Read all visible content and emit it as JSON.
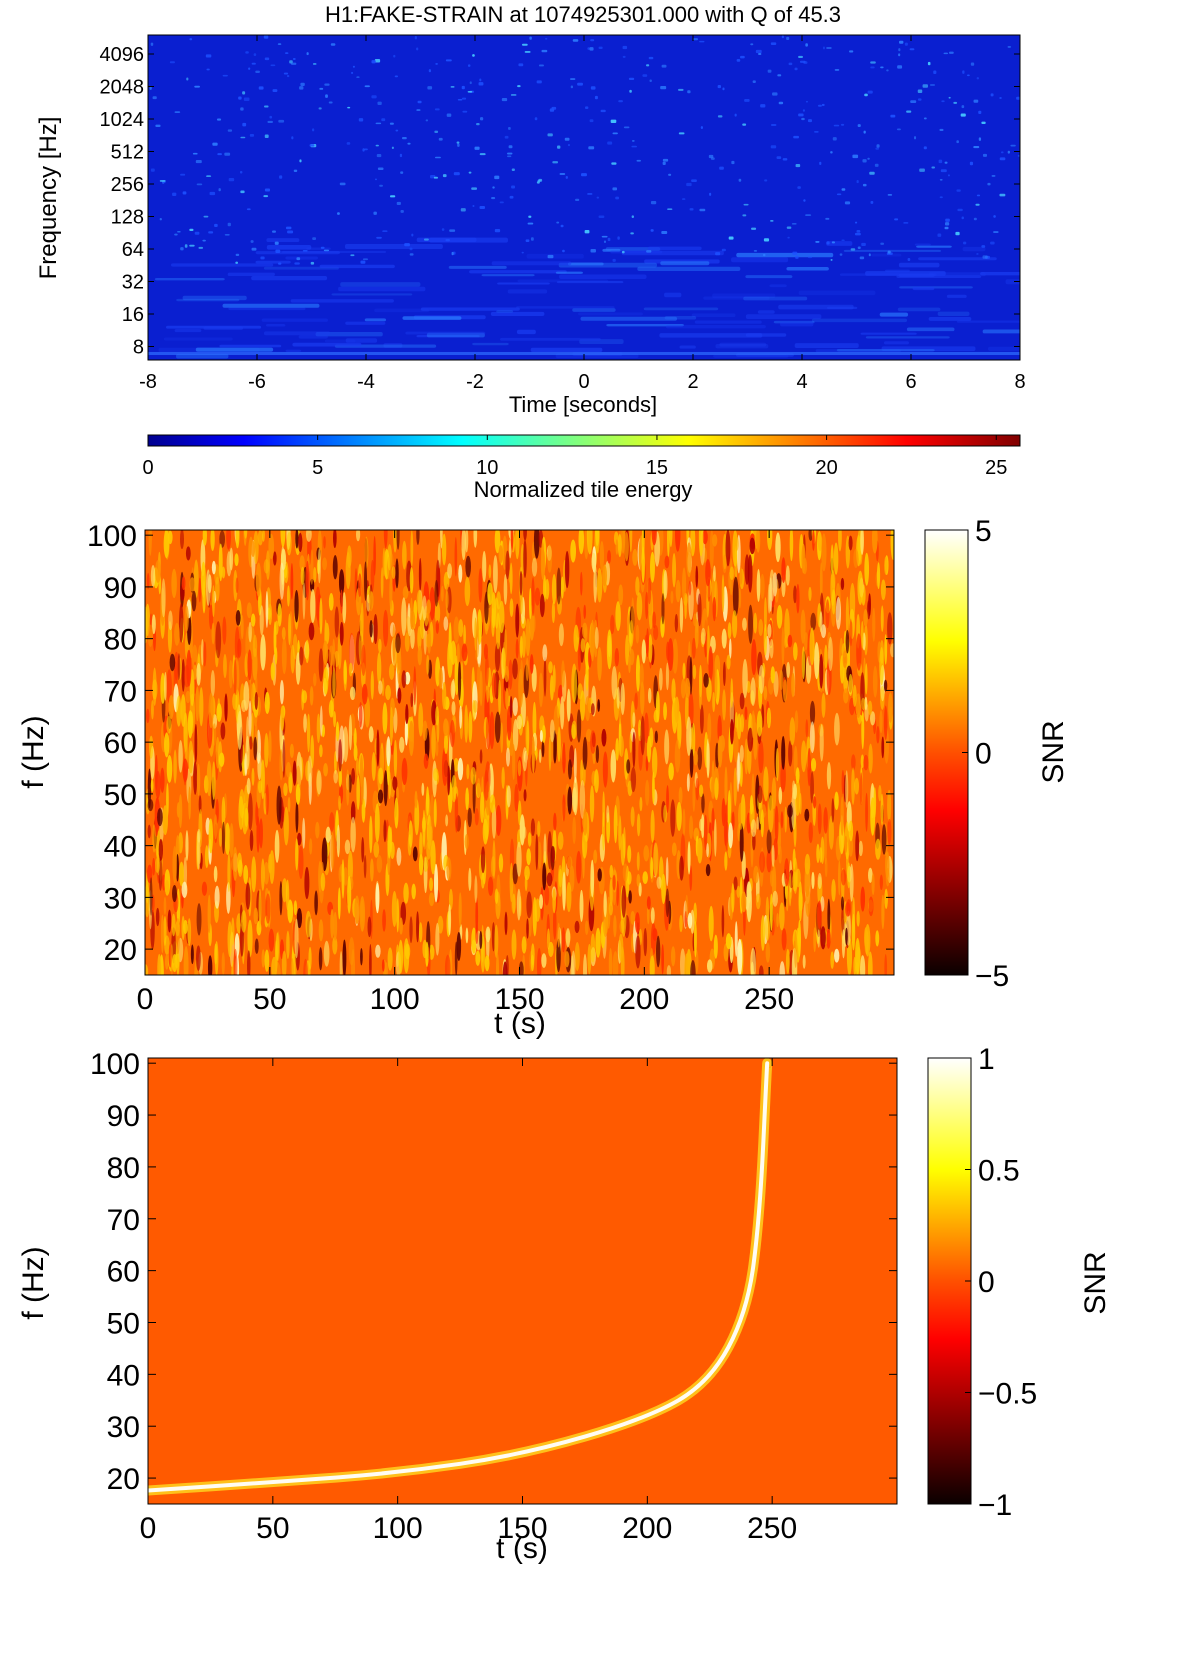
{
  "chart_data": [
    {
      "type": "heatmap",
      "title": "H1:FAKE-STRAIN at 1074925301.000 with Q of 45.3",
      "xlabel": "Time [seconds]",
      "ylabel": "Frequency [Hz]",
      "x_ticks": [
        -8,
        -6,
        -4,
        -2,
        0,
        2,
        4,
        6,
        8
      ],
      "y_ticks": [
        8,
        16,
        32,
        64,
        128,
        256,
        512,
        1024,
        2048,
        4096
      ],
      "xlim": [
        -8,
        8
      ],
      "ylim": [
        6,
        6144
      ],
      "y_scale": "log2",
      "colormap": "jet",
      "colorbar": {
        "label": "Normalized tile energy",
        "orientation": "horizontal",
        "placement": "below",
        "range": [
          0,
          25.7
        ],
        "ticks": [
          0,
          5,
          10,
          15,
          20,
          25
        ]
      },
      "background_color": "#0a1fd0"
    },
    {
      "type": "heatmap",
      "xlabel": "t (s)",
      "ylabel": "f (Hz)",
      "x_ticks": [
        0,
        50,
        100,
        150,
        200,
        250
      ],
      "y_ticks": [
        20,
        30,
        40,
        50,
        60,
        70,
        80,
        90,
        100
      ],
      "xlim": [
        0,
        300
      ],
      "ylim": [
        15,
        101
      ],
      "colormap": "hot",
      "colorbar": {
        "label": "SNR",
        "orientation": "vertical",
        "placement": "right",
        "range": [
          -5,
          5
        ],
        "ticks": [
          5,
          0,
          -5
        ],
        "tick_labels": [
          "5",
          "0",
          "−5"
        ]
      },
      "content": "noise"
    },
    {
      "type": "heatmap",
      "xlabel": "t (s)",
      "ylabel": "f (Hz)",
      "x_ticks": [
        0,
        50,
        100,
        150,
        200,
        250
      ],
      "y_ticks": [
        20,
        30,
        40,
        50,
        60,
        70,
        80,
        90,
        100
      ],
      "xlim": [
        0,
        300
      ],
      "ylim": [
        15,
        101
      ],
      "colormap": "hot",
      "colorbar": {
        "label": "SNR",
        "orientation": "vertical",
        "placement": "right",
        "range": [
          -1,
          1
        ],
        "ticks": [
          1,
          0.5,
          0,
          -0.5,
          -1
        ],
        "tick_labels": [
          "1",
          "0.5",
          "0",
          "−0.5",
          "−1"
        ]
      },
      "content": "chirp",
      "chirp": {
        "t_start": 0,
        "t_coalescence": 250,
        "f_start": 17.6,
        "points": [
          [
            0,
            17.6
          ],
          [
            50,
            19.2
          ],
          [
            100,
            21.0
          ],
          [
            150,
            24.5
          ],
          [
            200,
            31.5
          ],
          [
            225,
            38.5
          ],
          [
            240,
            52
          ],
          [
            245,
            70
          ],
          [
            248,
            100
          ]
        ]
      }
    }
  ]
}
